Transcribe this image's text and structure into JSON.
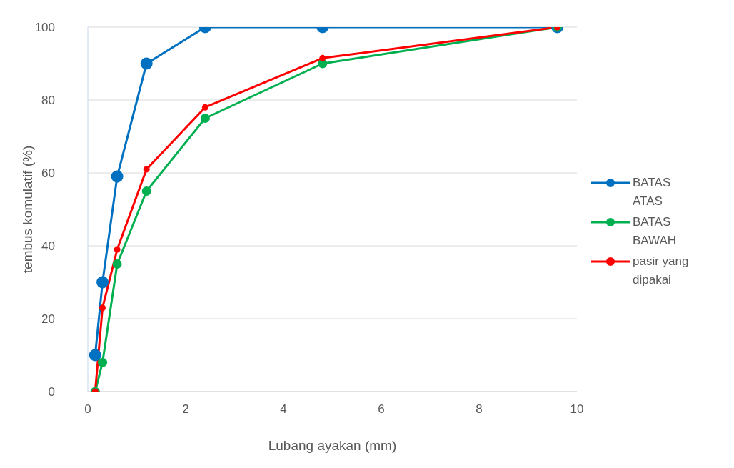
{
  "chart_data": {
    "type": "line",
    "xlabel": "Lubang ayakan (mm)",
    "ylabel": "tembus komulatif (%)",
    "x": [
      0.15,
      0.3,
      0.6,
      1.2,
      2.4,
      4.8,
      9.6
    ],
    "series": [
      {
        "name": "BATAS ATAS",
        "color": "#0070c0",
        "values": [
          10,
          30,
          59,
          90,
          100,
          100,
          100
        ]
      },
      {
        "name": "BATAS BAWAH",
        "color": "#00b050",
        "values": [
          0,
          8,
          35,
          55,
          75,
          90,
          100
        ]
      },
      {
        "name": "pasir yang dipakai",
        "color": "#ff0000",
        "values": [
          0,
          23,
          39,
          61,
          78,
          91.5,
          100
        ]
      }
    ],
    "xlim": [
      0,
      10
    ],
    "xticks": [
      0,
      2,
      4,
      6,
      8,
      10
    ],
    "ylim": [
      0,
      100
    ],
    "yticks": [
      0,
      20,
      40,
      60,
      80,
      100
    ],
    "grid": "y",
    "legend": "right",
    "marker": "circle",
    "line_style": "solid"
  }
}
